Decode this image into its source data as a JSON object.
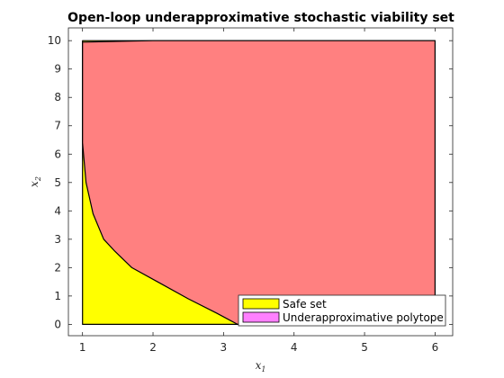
{
  "chart_data": {
    "type": "area",
    "title": "Open-loop underapproximative stochastic viability set",
    "xlabel": "x",
    "xlabel_sub": "1",
    "ylabel": "x",
    "ylabel_sub": "2",
    "xlim": [
      0.8,
      6.25
    ],
    "ylim": [
      -0.4,
      10.45
    ],
    "xticks": [
      1,
      2,
      3,
      4,
      5,
      6
    ],
    "yticks": [
      0,
      1,
      2,
      3,
      4,
      5,
      6,
      7,
      8,
      9,
      10
    ],
    "grid": false,
    "legend_position": "bottom-right",
    "series": [
      {
        "name": "Safe set",
        "color": "#ffff00",
        "polygon": [
          [
            1,
            0
          ],
          [
            6,
            0
          ],
          [
            6,
            10
          ],
          [
            1,
            10
          ]
        ]
      },
      {
        "name": "Underapproximative polytope",
        "legend_color": "#ff80ff",
        "fill_color": "#ff8080",
        "polygon": [
          [
            3.2,
            0
          ],
          [
            6,
            0
          ],
          [
            6,
            10
          ],
          [
            2,
            10
          ],
          [
            1,
            9.95
          ],
          [
            1,
            6.4
          ],
          [
            1.05,
            5.0
          ],
          [
            1.15,
            3.9
          ],
          [
            1.3,
            3.0
          ],
          [
            1.45,
            2.6
          ],
          [
            1.7,
            2.0
          ],
          [
            2.1,
            1.45
          ],
          [
            2.5,
            0.9
          ],
          [
            2.9,
            0.4
          ]
        ]
      }
    ]
  }
}
